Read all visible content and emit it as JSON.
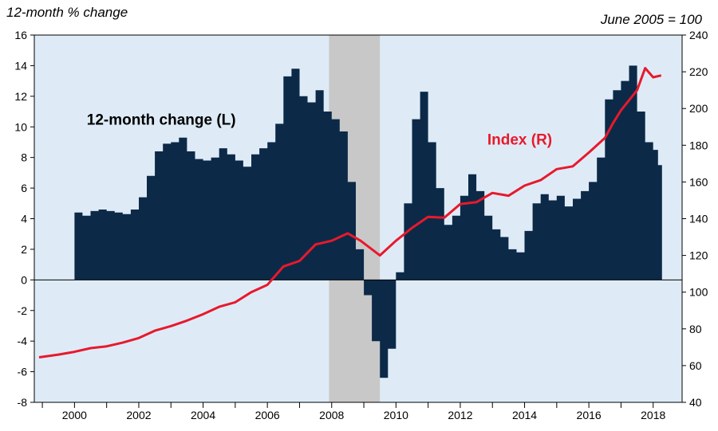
{
  "chart_data": {
    "type": "bar+line",
    "left_axis_title": "12-month % change",
    "right_axis_title": "June 2005 = 100",
    "xlim": [
      1998.75,
      2018.9
    ],
    "x_ticks": [
      2000,
      2002,
      2004,
      2006,
      2008,
      2010,
      2012,
      2014,
      2016,
      2018
    ],
    "left_ylim": [
      -8,
      16
    ],
    "left_ticks": [
      -8,
      -6,
      -4,
      -2,
      0,
      2,
      4,
      6,
      8,
      10,
      12,
      14,
      16
    ],
    "right_ylim": [
      40,
      240
    ],
    "right_ticks": [
      40,
      60,
      80,
      100,
      120,
      140,
      160,
      180,
      200,
      220,
      240
    ],
    "recession": [
      2007.917,
      2009.5
    ],
    "colors": {
      "bars": "#0c2a48",
      "index_line": "#e8192c",
      "plot_bg": "#deebf7",
      "recession": "#c8c8c8",
      "axis": "#000000"
    },
    "annotations": [
      {
        "text": "12-month change (L)",
        "x": 2002.7,
        "y_left": 10.5,
        "color": "#000000"
      },
      {
        "text": "Index (R)",
        "x": 2013.85,
        "y_left": 9.2,
        "color": "#e8192c"
      }
    ],
    "series": [
      {
        "name": "12-month change (L)",
        "type": "bar",
        "axis": "left",
        "points": [
          [
            2000.0,
            4.4
          ],
          [
            2000.25,
            4.2
          ],
          [
            2000.5,
            4.5
          ],
          [
            2000.75,
            4.6
          ],
          [
            2001.0,
            4.5
          ],
          [
            2001.25,
            4.4
          ],
          [
            2001.5,
            4.3
          ],
          [
            2001.75,
            4.6
          ],
          [
            2002.0,
            5.4
          ],
          [
            2002.25,
            6.8
          ],
          [
            2002.5,
            8.4
          ],
          [
            2002.75,
            8.9
          ],
          [
            2003.0,
            9.0
          ],
          [
            2003.25,
            9.3
          ],
          [
            2003.5,
            8.4
          ],
          [
            2003.75,
            7.9
          ],
          [
            2004.0,
            7.8
          ],
          [
            2004.25,
            8.0
          ],
          [
            2004.5,
            8.6
          ],
          [
            2004.75,
            8.2
          ],
          [
            2005.0,
            7.8
          ],
          [
            2005.25,
            7.4
          ],
          [
            2005.5,
            8.2
          ],
          [
            2005.75,
            8.6
          ],
          [
            2006.0,
            9.0
          ],
          [
            2006.25,
            10.2
          ],
          [
            2006.5,
            13.3
          ],
          [
            2006.75,
            13.8
          ],
          [
            2007.0,
            12.0
          ],
          [
            2007.25,
            11.6
          ],
          [
            2007.5,
            12.4
          ],
          [
            2007.75,
            11.0
          ],
          [
            2008.0,
            10.5
          ],
          [
            2008.25,
            9.7
          ],
          [
            2008.5,
            6.4
          ],
          [
            2008.75,
            2.0
          ],
          [
            2009.0,
            -1.0
          ],
          [
            2009.25,
            -4.0
          ],
          [
            2009.5,
            -6.4
          ],
          [
            2009.75,
            -4.5
          ],
          [
            2010.0,
            0.5
          ],
          [
            2010.25,
            5.0
          ],
          [
            2010.5,
            10.5
          ],
          [
            2010.75,
            12.3
          ],
          [
            2011.0,
            9.0
          ],
          [
            2011.25,
            6.0
          ],
          [
            2011.5,
            3.6
          ],
          [
            2011.75,
            4.2
          ],
          [
            2012.0,
            5.5
          ],
          [
            2012.25,
            6.9
          ],
          [
            2012.5,
            5.8
          ],
          [
            2012.75,
            4.2
          ],
          [
            2013.0,
            3.3
          ],
          [
            2013.25,
            2.8
          ],
          [
            2013.5,
            2.0
          ],
          [
            2013.75,
            1.8
          ],
          [
            2014.0,
            3.2
          ],
          [
            2014.25,
            5.0
          ],
          [
            2014.5,
            5.6
          ],
          [
            2014.75,
            5.2
          ],
          [
            2015.0,
            5.5
          ],
          [
            2015.25,
            4.8
          ],
          [
            2015.5,
            5.3
          ],
          [
            2015.75,
            5.8
          ],
          [
            2016.0,
            6.4
          ],
          [
            2016.25,
            8.0
          ],
          [
            2016.5,
            11.8
          ],
          [
            2016.75,
            12.4
          ],
          [
            2017.0,
            13.0
          ],
          [
            2017.25,
            14.0
          ],
          [
            2017.5,
            11.0
          ],
          [
            2017.75,
            9.0
          ],
          [
            2018.0,
            8.5
          ],
          [
            2018.15,
            7.5
          ]
        ]
      },
      {
        "name": "Index (R)",
        "type": "line",
        "axis": "right",
        "points": [
          [
            1998.9,
            64.5
          ],
          [
            1999.5,
            66.0
          ],
          [
            2000.0,
            67.5
          ],
          [
            2000.5,
            69.5
          ],
          [
            2001.0,
            70.5
          ],
          [
            2001.5,
            72.5
          ],
          [
            2002.0,
            75.0
          ],
          [
            2002.5,
            79.0
          ],
          [
            2003.0,
            81.5
          ],
          [
            2003.5,
            84.5
          ],
          [
            2004.0,
            88.0
          ],
          [
            2004.5,
            92.0
          ],
          [
            2005.0,
            94.5
          ],
          [
            2005.5,
            100.0
          ],
          [
            2006.0,
            104.0
          ],
          [
            2006.5,
            114.0
          ],
          [
            2007.0,
            117.0
          ],
          [
            2007.5,
            126.0
          ],
          [
            2008.0,
            128.0
          ],
          [
            2008.5,
            132.0
          ],
          [
            2008.9,
            128.0
          ],
          [
            2009.5,
            120.0
          ],
          [
            2010.0,
            128.0
          ],
          [
            2010.5,
            135.0
          ],
          [
            2011.0,
            141.0
          ],
          [
            2011.5,
            140.5
          ],
          [
            2012.0,
            148.0
          ],
          [
            2012.5,
            149.0
          ],
          [
            2013.0,
            154.0
          ],
          [
            2013.5,
            152.5
          ],
          [
            2014.0,
            158.0
          ],
          [
            2014.5,
            161.0
          ],
          [
            2015.0,
            167.0
          ],
          [
            2015.5,
            168.5
          ],
          [
            2016.0,
            176.0
          ],
          [
            2016.5,
            184.0
          ],
          [
            2016.75,
            192.0
          ],
          [
            2017.0,
            199.0
          ],
          [
            2017.5,
            210.0
          ],
          [
            2017.75,
            222.0
          ],
          [
            2018.0,
            217.0
          ],
          [
            2018.25,
            218.0
          ]
        ]
      }
    ]
  }
}
